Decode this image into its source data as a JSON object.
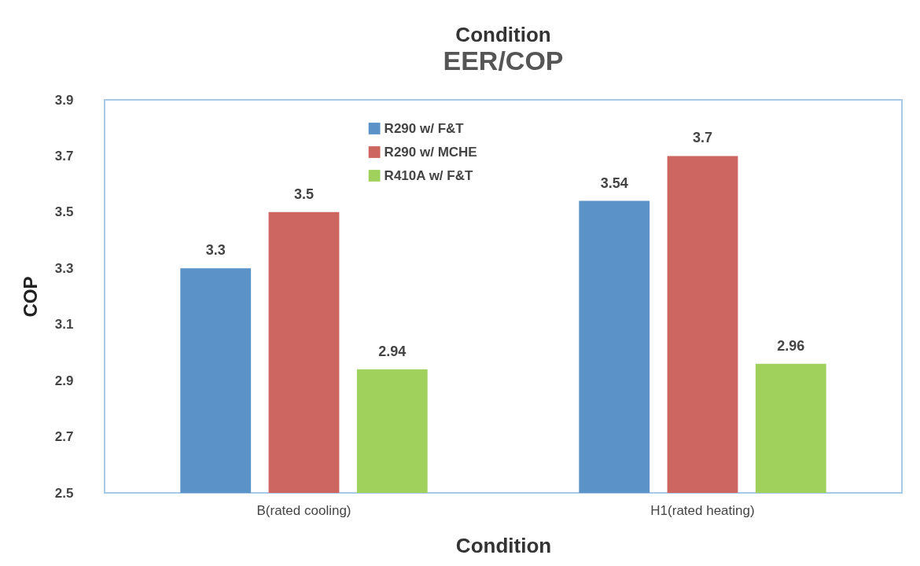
{
  "chart_data": {
    "type": "bar",
    "title": "Condition",
    "subtitle": "EER/COP",
    "xlabel": "Condition",
    "ylabel": "COP",
    "categories": [
      "B(rated cooling)",
      "H1(rated heating)"
    ],
    "series": [
      {
        "name": "R290 w/ F&T",
        "color": "#5b93c9",
        "values": [
          3.3,
          3.54
        ]
      },
      {
        "name": "R290 w/ MCHE",
        "color": "#cd6560",
        "values": [
          3.5,
          3.7
        ]
      },
      {
        "name": "R410A w/ F&T",
        "color": "#a0d15c",
        "values": [
          2.94,
          2.96
        ]
      }
    ],
    "ylim": [
      2.5,
      3.9
    ],
    "yticks": [
      2.5,
      2.7,
      2.9,
      3.1,
      3.3,
      3.5,
      3.7,
      3.9
    ],
    "grid": false,
    "legend": "top",
    "data_labels": true
  }
}
